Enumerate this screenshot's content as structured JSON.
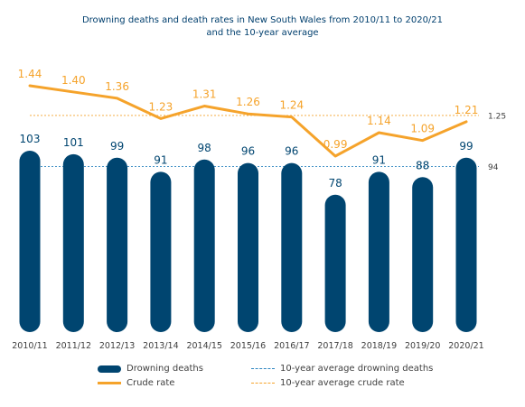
{
  "chart_data": {
    "type": "bar",
    "title": "Drowning deaths and death rates in New South Wales from 2010/11 to 2020/21",
    "subtitle": "and the 10-year average",
    "categories": [
      "2010/11",
      "2011/12",
      "2012/13",
      "2013/14",
      "2014/15",
      "2015/16",
      "2016/17",
      "2017/18",
      "2018/19",
      "2019/20",
      "2020/21"
    ],
    "series": [
      {
        "name": "Drowning deaths",
        "type": "bar",
        "values": [
          103,
          101,
          99,
          91,
          98,
          96,
          96,
          78,
          91,
          88,
          99
        ]
      },
      {
        "name": "Crude rate",
        "type": "line",
        "values": [
          1.44,
          1.4,
          1.36,
          1.23,
          1.31,
          1.26,
          1.24,
          0.99,
          1.14,
          1.09,
          1.21
        ]
      }
    ],
    "reference_lines": [
      {
        "name": "10-year average drowning deaths",
        "value": 94,
        "label": "94"
      },
      {
        "name": "10-year average crude rate",
        "value": 1.25,
        "label": "1.25"
      }
    ],
    "ylim_deaths": [
      0,
      103
    ],
    "ylim_rate": [
      0.99,
      1.44
    ],
    "legend_position": "bottom",
    "grid": false,
    "colors": {
      "bars": "#004570",
      "line": "#f5a32b",
      "avg_deaths_line": "#2e86c1",
      "avg_rate_line": "#f5a32b",
      "bar_label": "#004570",
      "line_label": "#f5a32b",
      "axis_text": "#404040",
      "title": "#003f6e"
    }
  }
}
